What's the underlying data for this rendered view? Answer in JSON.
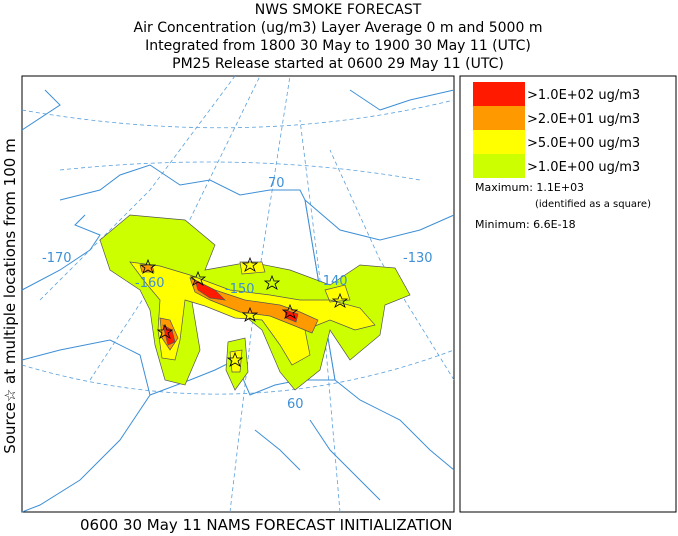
{
  "header": {
    "lines": [
      "NWS SMOKE FORECAST",
      "Air Concentration (ug/m3) Layer Average    0 m and  5000 m",
      "Integrated from 1800 30 May to 1900 30 May 11 (UTC)",
      "PM25 Release started at 0600 29 May 11 (UTC)"
    ]
  },
  "side_label": "Source☆ at multiple locations from   100 m",
  "footer": "0600 30 May 11 NAMS FORECAST INITIALIZATION",
  "legend": {
    "items": [
      {
        "label": ">1.0E+02 ug/m3",
        "color": "#ff1a00"
      },
      {
        "label": ">2.0E+01 ug/m3",
        "color": "#ff9900"
      },
      {
        "label": ">5.0E+00 ug/m3",
        "color": "#ffff00"
      },
      {
        "label": ">1.0E+00 ug/m3",
        "color": "#ccff00"
      }
    ],
    "maximum": "Maximum: 1.1E+03",
    "maximum_note": "(identified as a square)",
    "minimum": "Minimum: 6.6E-18"
  },
  "map": {
    "longitude_labels": [
      "-170",
      "-160",
      "-150",
      "-140",
      "-130"
    ],
    "latitude_labels": [
      "70",
      "60"
    ]
  }
}
